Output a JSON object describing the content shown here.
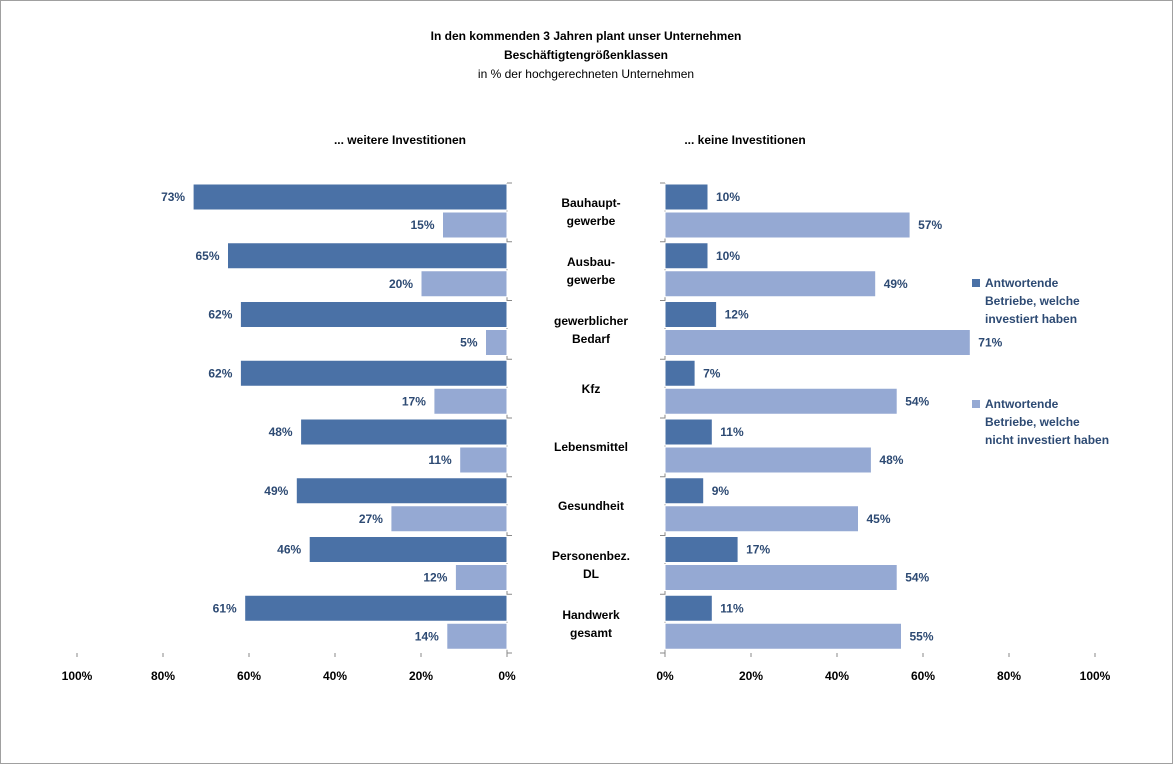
{
  "chart_data": {
    "type": "bar",
    "orientation": "horizontal",
    "title": "In den kommenden 3 Jahren plant unser Unternehmen",
    "subtitle": "Beschäftigtengrößenklassen",
    "note": "in % der hochgerechneten Unternehmen",
    "categories": [
      "Bauhaupt-\ngewerbe",
      "Ausbau-\ngewerbe",
      "gewerblicher\nBedarf",
      "Kfz",
      "Lebensmittel",
      "Gesundheit",
      "Personenbez.\nDL",
      "Handwerk\ngesamt"
    ],
    "legend": {
      "position": "right",
      "entries": [
        {
          "name": "Antwortende\nBetriebe, welche\ninvestiert haben",
          "color": "#4a71a6"
        },
        {
          "name": "Antwortende\nBetriebe, welche\nnicht investiert haben",
          "color": "#95a9d3"
        }
      ]
    },
    "panels": [
      {
        "title": "... weitere Investitionen",
        "direction": "reversed",
        "xlim": [
          0,
          100
        ],
        "xticks": [
          {
            "value": 0,
            "label": "0%"
          },
          {
            "value": 20,
            "label": "20%"
          },
          {
            "value": 40,
            "label": "40%"
          },
          {
            "value": 60,
            "label": "60%"
          },
          {
            "value": 80,
            "label": "80%"
          },
          {
            "value": 100,
            "label": "100%"
          }
        ],
        "series": [
          {
            "values": [
              73,
              65,
              62,
              62,
              48,
              49,
              46,
              61
            ],
            "value_labels": [
              "73%",
              "65%",
              "62%",
              "62%",
              "48%",
              "49%",
              "46%",
              "61%"
            ]
          },
          {
            "values": [
              15,
              20,
              5,
              17,
              11,
              27,
              12,
              14
            ],
            "value_labels": [
              "15%",
              "20%",
              "5%",
              "17%",
              "11%",
              "27%",
              "12%",
              "14%"
            ]
          }
        ]
      },
      {
        "title": "... keine Investitionen",
        "direction": "normal",
        "xlim": [
          0,
          100
        ],
        "xticks": [
          {
            "value": 0,
            "label": "0%"
          },
          {
            "value": 20,
            "label": "20%"
          },
          {
            "value": 40,
            "label": "40%"
          },
          {
            "value": 60,
            "label": "60%"
          },
          {
            "value": 80,
            "label": "80%"
          },
          {
            "value": 100,
            "label": "100%"
          }
        ],
        "series": [
          {
            "values": [
              10,
              10,
              12,
              7,
              11,
              9,
              17,
              11
            ],
            "value_labels": [
              "10%",
              "10%",
              "12%",
              "7%",
              "11%",
              "9%",
              "17%",
              "11%"
            ]
          },
          {
            "values": [
              57,
              49,
              71,
              54,
              48,
              45,
              54,
              55
            ],
            "value_labels": [
              "57%",
              "49%",
              "71%",
              "54%",
              "48%",
              "45%",
              "54%",
              "55%"
            ]
          }
        ]
      }
    ]
  }
}
